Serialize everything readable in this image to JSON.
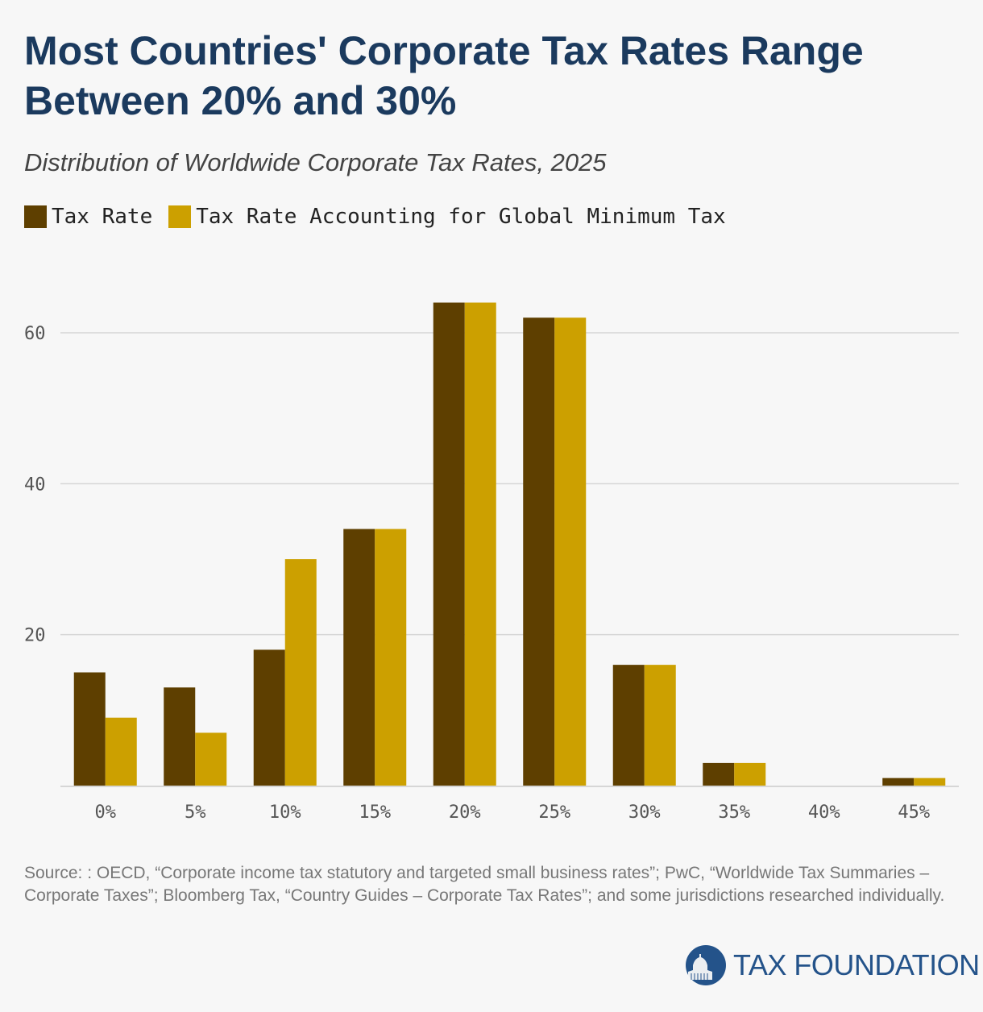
{
  "chart_data": {
    "type": "bar",
    "title": "Most Countries' Corporate Tax Rates Range Between 20% and 30%",
    "subtitle": "Distribution of Worldwide Corporate Tax Rates, 2025",
    "categories": [
      "0%",
      "5%",
      "10%",
      "15%",
      "20%",
      "25%",
      "30%",
      "35%",
      "40%",
      "45%"
    ],
    "series": [
      {
        "name": "Tax Rate",
        "color": "#5e3f00",
        "values": [
          15,
          13,
          18,
          34,
          64,
          62,
          16,
          3,
          0,
          1
        ]
      },
      {
        "name": "Tax Rate Accounting for Global Minimum Tax",
        "color": "#cca000",
        "values": [
          9,
          7,
          30,
          34,
          64,
          62,
          16,
          3,
          0,
          1
        ]
      }
    ],
    "yticks": [
      20,
      40,
      60
    ],
    "ylim": [
      0,
      64
    ],
    "grid": true,
    "legend": "top-left",
    "xlabel": "",
    "ylabel": ""
  },
  "source": "Source: : OECD, “Corporate income tax statutory and targeted small business rates”; PwC, “Worldwide Tax Summaries – Corporate Taxes”; Bloomberg Tax, “Country Guides – Corporate Tax Rates”; and some jurisdictions researched individually.",
  "logo": {
    "text": "TAX FOUNDATION",
    "color": "#24538a"
  }
}
